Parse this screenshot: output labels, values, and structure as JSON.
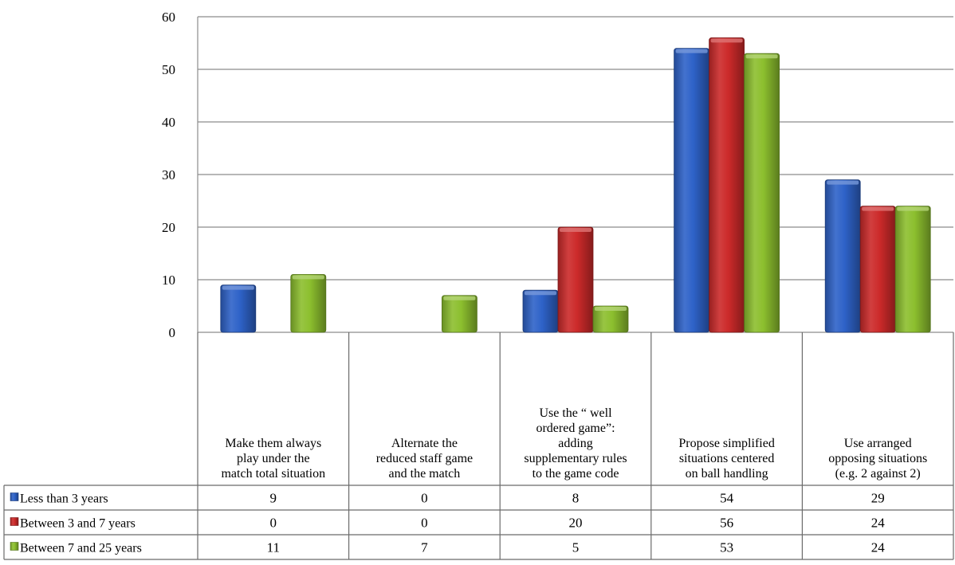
{
  "chart_data": {
    "type": "bar",
    "title": "",
    "xlabel": "",
    "ylabel": "",
    "ylim": [
      0,
      60
    ],
    "y_ticks": [
      0,
      10,
      20,
      30,
      40,
      50,
      60
    ],
    "grid": true,
    "legend": "data-table-left",
    "categories": [
      "Make them always play under the match total situation",
      "Alternate the reduced staff game and the match",
      "Use the “ well ordered game”: adding supplementary rules to the game code",
      "Propose simplified situations centered on ball handling",
      "Use arranged opposing situations (e.g. 2 against 2)"
    ],
    "category_lines": [
      [
        "Make them always",
        "play under the",
        "match total situation"
      ],
      [
        "Alternate the",
        "reduced staff game",
        "and the match"
      ],
      [
        "Use the “ well",
        "ordered game”:",
        "adding",
        "supplementary rules",
        "to the game code"
      ],
      [
        "Propose simplified",
        "situations centered",
        "on ball handling"
      ],
      [
        "Use arranged",
        "opposing situations",
        "(e.g.  2 against 2)"
      ]
    ],
    "series": [
      {
        "name": "Less than 3 years",
        "values": [
          9,
          0,
          8,
          54,
          29
        ],
        "color": "#2e62c8"
      },
      {
        "name": "Between 3 and 7 years",
        "values": [
          0,
          0,
          20,
          56,
          24
        ],
        "color": "#cc2a2a"
      },
      {
        "name": "Between 7 and 25 years",
        "values": [
          11,
          7,
          5,
          53,
          24
        ],
        "color": "#8cbf2e"
      }
    ]
  }
}
